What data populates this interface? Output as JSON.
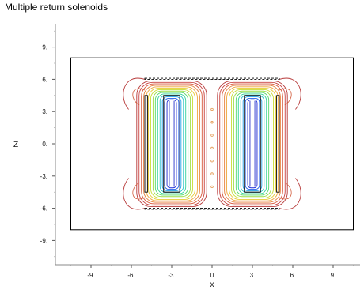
{
  "chart_data": {
    "type": "line",
    "title": "Multiple return solenoids",
    "xlabel": "x",
    "ylabel": "Z",
    "xlim": [
      -11.5,
      11
    ],
    "ylim": [
      -11,
      11.2
    ],
    "xticks": [
      -9,
      -6,
      -3,
      0,
      3,
      6,
      9
    ],
    "yticks": [
      9,
      6,
      3,
      0,
      -3,
      -6,
      -9
    ],
    "xtick_labels": [
      "-9.",
      "-6.",
      "-3.",
      "0",
      "3.",
      "6.",
      "9."
    ],
    "ytick_labels": [
      "9.",
      "6.",
      "3.",
      "0.",
      "-3.",
      "-6.",
      "-9."
    ],
    "grid": false,
    "boundary_box": {
      "x": [
        -10.5,
        10.5
      ],
      "z": [
        -8,
        8
      ]
    },
    "coils": [
      {
        "name": "",
        "x": [
          -3.6,
          -2.4
        ],
        "z": [
          -4.5,
          4.5
        ]
      },
      {
        "name": "",
        "x": [
          2.4,
          3.6
        ],
        "z": [
          -4.5,
          4.5
        ]
      }
    ],
    "return_yokes": [
      {
        "x": [
          -5.0,
          5.0
        ],
        "z": [
          6.0,
          6.1
        ]
      },
      {
        "x": [
          -5.0,
          5.0
        ],
        "z": [
          -6.1,
          -6.0
        ]
      },
      {
        "x": [
          -5.0,
          -4.8
        ],
        "z": [
          -4.5,
          4.5
        ]
      },
      {
        "x": [
          4.8,
          5.0
        ],
        "z": [
          -4.5,
          4.5
        ]
      }
    ],
    "contour_levels": 14,
    "colormap": [
      "#1f2bd6",
      "#2563eb",
      "#22a0e6",
      "#27c2c7",
      "#2fd39a",
      "#56d96a",
      "#9adf47",
      "#c9dd36",
      "#e8cc34",
      "#efa53a",
      "#e57f3a",
      "#d8583b",
      "#c8413f",
      "#b73a3a"
    ],
    "frame_color": "#000000"
  }
}
